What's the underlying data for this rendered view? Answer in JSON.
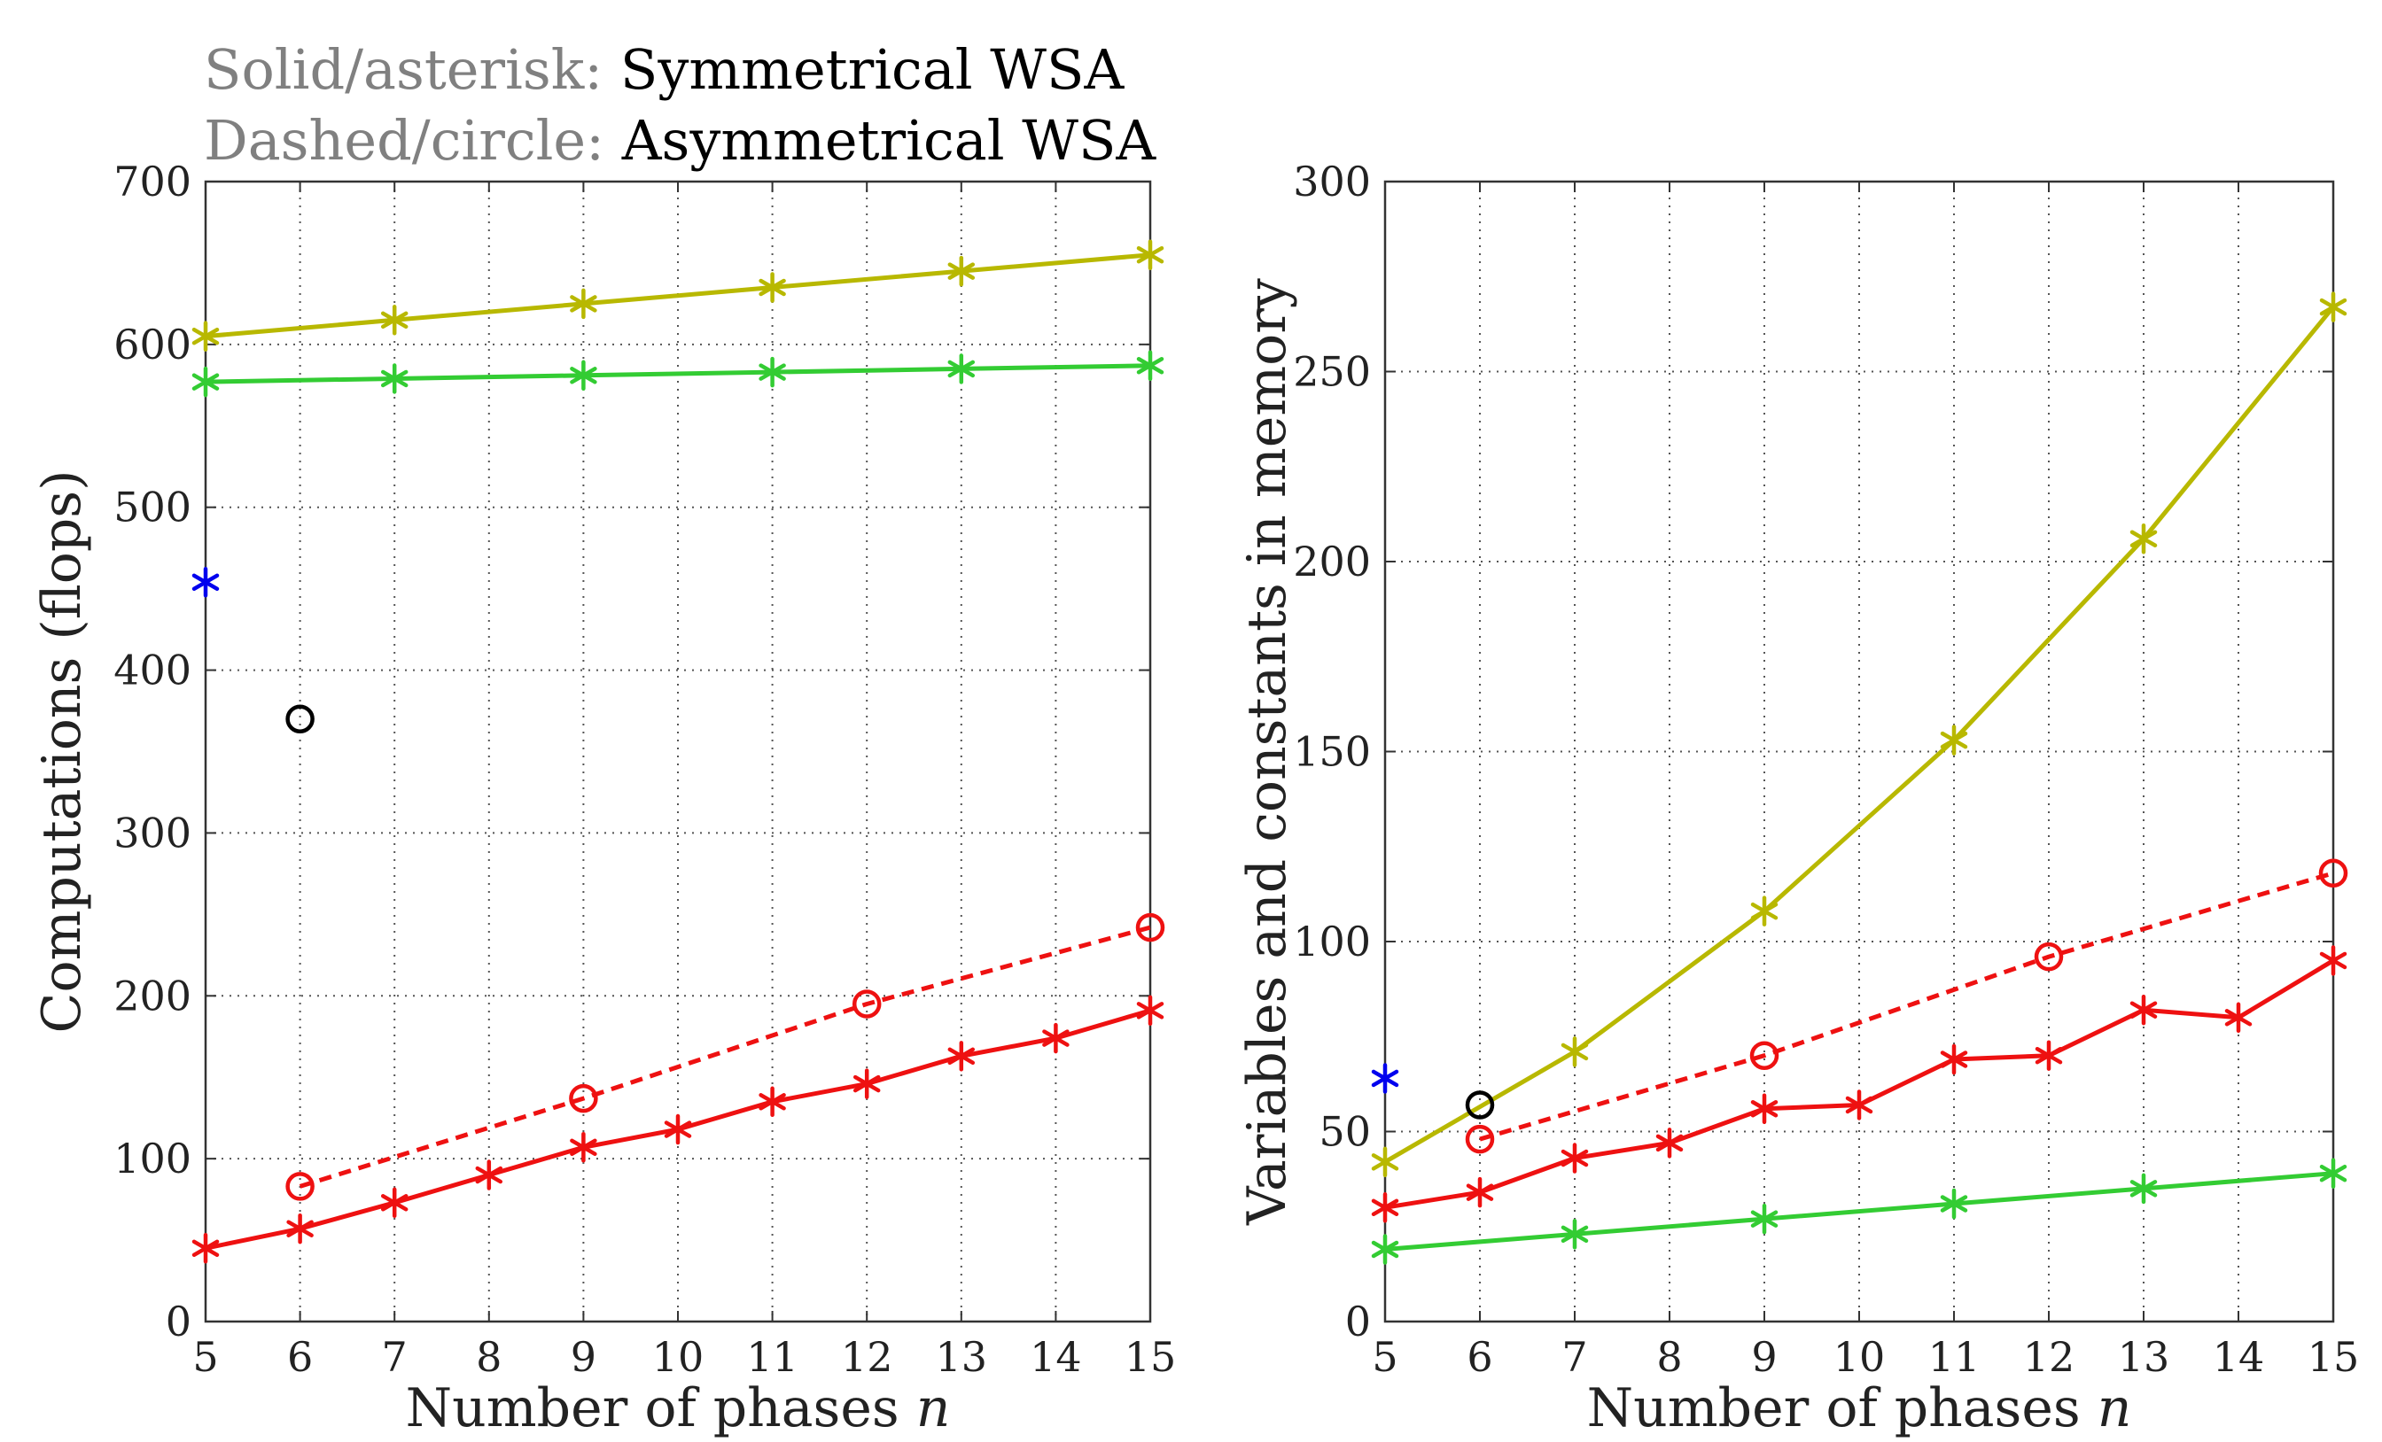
{
  "legend": {
    "line1_key": "Solid/asterisk:",
    "line1_value": "Symmetrical WSA",
    "line2_key": "Dashed/circle:",
    "line2_value": "Asymmetrical WSA",
    "key_color": "#808080"
  },
  "colors": {
    "yellow": "#b8b800",
    "green": "#33cc33",
    "red": "#ee1111",
    "blue": "#0000ee",
    "black": "#000000",
    "grid": "#555555"
  },
  "chart_data": [
    {
      "type": "line",
      "xlabel": "Number of phases ",
      "xlabel_var": "n",
      "ylabel": "Computations (flops)",
      "xlim": [
        5,
        15
      ],
      "ylim": [
        0,
        700
      ],
      "xticks": [
        5,
        6,
        7,
        8,
        9,
        10,
        11,
        12,
        13,
        14,
        15
      ],
      "yticks": [
        0,
        100,
        200,
        300,
        400,
        500,
        600,
        700
      ],
      "grid": true,
      "series": [
        {
          "name": "yellow-symmetrical",
          "color": "yellow",
          "style": "solid",
          "marker": "asterisk",
          "x": [
            5,
            7,
            9,
            11,
            13,
            15
          ],
          "y": [
            605,
            615,
            625,
            635,
            645,
            655
          ]
        },
        {
          "name": "green-symmetrical",
          "color": "green",
          "style": "solid",
          "marker": "asterisk",
          "x": [
            5,
            7,
            9,
            11,
            13,
            15
          ],
          "y": [
            577,
            579,
            581,
            583,
            585,
            587
          ]
        },
        {
          "name": "red-symmetrical",
          "color": "red",
          "style": "solid",
          "marker": "asterisk",
          "x": [
            5,
            6,
            7,
            8,
            9,
            10,
            11,
            12,
            13,
            14,
            15
          ],
          "y": [
            45,
            57,
            73,
            90,
            107,
            118,
            135,
            146,
            163,
            174,
            191
          ]
        },
        {
          "name": "red-asymmetrical",
          "color": "red",
          "style": "dashed",
          "marker": "circle",
          "x": [
            6,
            9,
            12,
            15
          ],
          "y": [
            83,
            137,
            195,
            242
          ]
        },
        {
          "name": "blue-symmetrical-point",
          "color": "blue",
          "style": "none",
          "marker": "asterisk",
          "x": [
            5
          ],
          "y": [
            454
          ]
        },
        {
          "name": "black-asymmetrical-point",
          "color": "black",
          "style": "none",
          "marker": "circle",
          "x": [
            6
          ],
          "y": [
            370
          ]
        }
      ]
    },
    {
      "type": "line",
      "xlabel": "Number of phases ",
      "xlabel_var": "n",
      "ylabel": "Variables and constants in memory",
      "xlim": [
        5,
        15
      ],
      "ylim": [
        0,
        300
      ],
      "xticks": [
        5,
        6,
        7,
        8,
        9,
        10,
        11,
        12,
        13,
        14,
        15
      ],
      "yticks": [
        0,
        50,
        100,
        150,
        200,
        250,
        300
      ],
      "grid": true,
      "series": [
        {
          "name": "yellow-symmetrical",
          "color": "yellow",
          "style": "solid",
          "marker": "asterisk",
          "x": [
            5,
            7,
            9,
            11,
            13,
            15
          ],
          "y": [
            42,
            71,
            108,
            153,
            206,
            267
          ]
        },
        {
          "name": "green-symmetrical",
          "color": "green",
          "style": "solid",
          "marker": "asterisk",
          "x": [
            5,
            7,
            9,
            11,
            13,
            15
          ],
          "y": [
            19,
            23,
            27,
            31,
            35,
            39
          ]
        },
        {
          "name": "red-symmetrical",
          "color": "red",
          "style": "solid",
          "marker": "asterisk",
          "x": [
            5,
            6,
            7,
            8,
            9,
            10,
            11,
            12,
            13,
            14,
            15
          ],
          "y": [
            30,
            34,
            43,
            47,
            56,
            57,
            69,
            70,
            82,
            80,
            95
          ]
        },
        {
          "name": "red-asymmetrical",
          "color": "red",
          "style": "dashed",
          "marker": "circle",
          "x": [
            6,
            9,
            12,
            15
          ],
          "y": [
            48,
            70,
            96,
            118
          ]
        },
        {
          "name": "blue-symmetrical-point",
          "color": "blue",
          "style": "none",
          "marker": "asterisk",
          "x": [
            5
          ],
          "y": [
            64
          ]
        },
        {
          "name": "black-asymmetrical-point",
          "color": "black",
          "style": "none",
          "marker": "circle",
          "x": [
            6
          ],
          "y": [
            57
          ]
        }
      ]
    }
  ]
}
